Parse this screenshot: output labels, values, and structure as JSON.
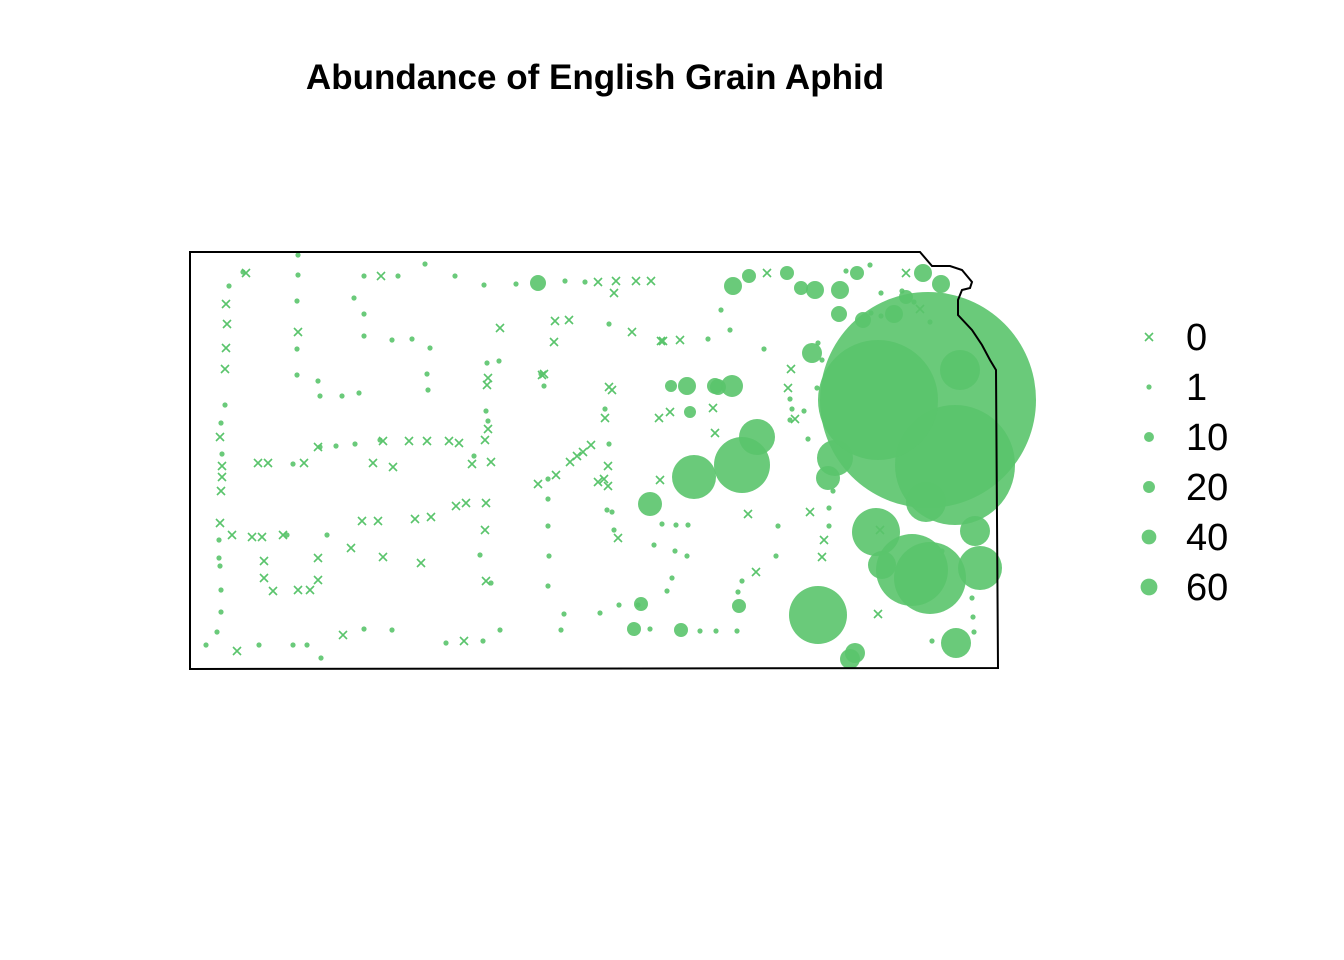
{
  "title": "Abundance of English Grain Aphid",
  "colors": {
    "point": "#5ac46c",
    "boundary": "#000000",
    "background": "#ffffff"
  },
  "legend": {
    "placement": "right",
    "entries": [
      {
        "label": "0",
        "value": 0
      },
      {
        "label": "1",
        "value": 1
      },
      {
        "label": "10",
        "value": 10
      },
      {
        "label": "20",
        "value": 20
      },
      {
        "label": "40",
        "value": 40
      },
      {
        "label": "60",
        "value": 60
      }
    ]
  }
}
